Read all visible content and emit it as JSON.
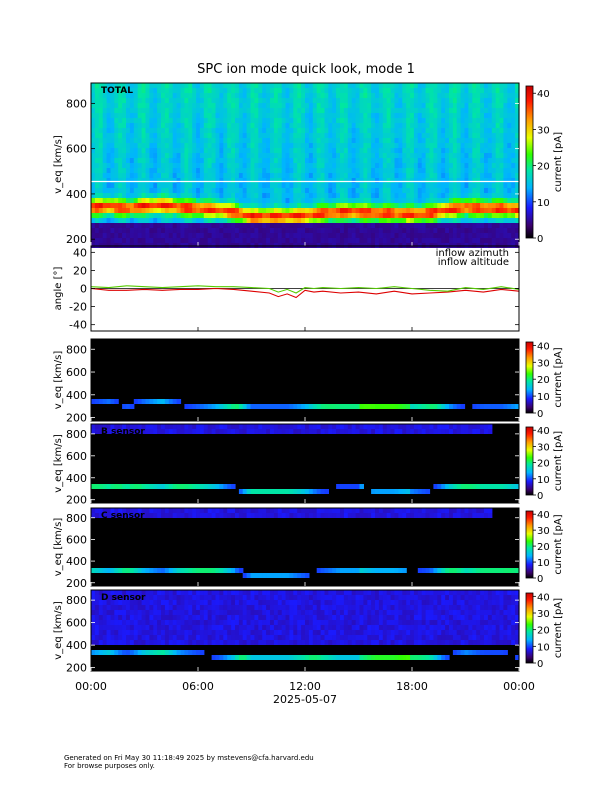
{
  "title": "SPC ion mode quick look, mode 1",
  "footer": {
    "line1": "Generated on Fri May 30 11:18:49 2025 by mstevens@cfa.harvard.edu",
    "line2": "For browse purposes only."
  },
  "colors": {
    "background": "#ffffff",
    "azimuth_line": "#dd0000",
    "altitude_line": "#55cc00",
    "bad_band": "#ffffff"
  },
  "chart_data": [
    {
      "type": "heatmap",
      "panel": "total",
      "label": "TOTAL",
      "ylabel": "v_eq [km/s]",
      "ylim": [
        170,
        890
      ],
      "yticks": [
        200,
        400,
        600,
        800
      ],
      "colorbar": {
        "label": "current [pA]",
        "range": [
          0,
          42
        ],
        "ticks": [
          0,
          10,
          20,
          30,
          40
        ]
      },
      "background_level": "high",
      "peak_velocity_kms": [
        {
          "hour": 0,
          "v": 340
        },
        {
          "hour": 1,
          "v": 345
        },
        {
          "hour": 2,
          "v": 335
        },
        {
          "hour": 3,
          "v": 345
        },
        {
          "hour": 4,
          "v": 350
        },
        {
          "hour": 5,
          "v": 340
        },
        {
          "hour": 6,
          "v": 335
        },
        {
          "hour": 7,
          "v": 330
        },
        {
          "hour": 8,
          "v": 320
        },
        {
          "hour": 9,
          "v": 300
        },
        {
          "hour": 10,
          "v": 300
        },
        {
          "hour": 11,
          "v": 300
        },
        {
          "hour": 12,
          "v": 305
        },
        {
          "hour": 13,
          "v": 315
        },
        {
          "hour": 14,
          "v": 320
        },
        {
          "hour": 15,
          "v": 320
        },
        {
          "hour": 16,
          "v": 315
        },
        {
          "hour": 17,
          "v": 315
        },
        {
          "hour": 18,
          "v": 310
        },
        {
          "hour": 19,
          "v": 315
        },
        {
          "hour": 20,
          "v": 330
        },
        {
          "hour": 21,
          "v": 340
        },
        {
          "hour": 22,
          "v": 335
        },
        {
          "hour": 23,
          "v": 335
        },
        {
          "hour": 24,
          "v": 330
        }
      ],
      "bad_band_kms": 455
    },
    {
      "type": "line",
      "panel": "angles",
      "ylabel": "angle [°]",
      "ylim": [
        -47,
        47
      ],
      "yticks": [
        -40,
        -20,
        0,
        20,
        40
      ],
      "series": [
        {
          "name": "inflow azimuth",
          "color": "#dd0000",
          "x": [
            0,
            1,
            2,
            3,
            4,
            5,
            6,
            7,
            8,
            9,
            10,
            10.5,
            11,
            11.5,
            12,
            12.5,
            13,
            14,
            15,
            16,
            17,
            18,
            19,
            20,
            21,
            22,
            23,
            24
          ],
          "values": [
            0,
            -2,
            -2,
            -1,
            -2,
            -1,
            -1,
            0,
            -1,
            -3,
            -5,
            -9,
            -6,
            -10,
            -2,
            -4,
            -3,
            -5,
            -4,
            -6,
            -3,
            -6,
            -5,
            -4,
            -2,
            -4,
            -1,
            -3
          ]
        },
        {
          "name": "inflow altitude",
          "color": "#55cc00",
          "x": [
            0,
            1,
            2,
            3,
            4,
            5,
            6,
            7,
            8,
            9,
            10,
            10.5,
            11,
            11.5,
            12,
            12.5,
            13,
            14,
            15,
            16,
            17,
            18,
            19,
            20,
            21,
            22,
            23,
            24
          ],
          "values": [
            2,
            1,
            3,
            2,
            1,
            2,
            3,
            2,
            2,
            1,
            0,
            -4,
            -1,
            -5,
            1,
            0,
            1,
            0,
            1,
            0,
            2,
            0,
            -2,
            -3,
            1,
            -1,
            2,
            -1
          ]
        }
      ]
    },
    {
      "type": "heatmap",
      "panel": "sensor-b",
      "label": "",
      "ylabel": "v_eq [km/s]",
      "ylim": [
        170,
        890
      ],
      "yticks": [
        200,
        400,
        600,
        800
      ],
      "colorbar": {
        "label": "current [pA]",
        "range": [
          0,
          42
        ],
        "ticks": [
          0,
          10,
          20,
          30,
          40
        ]
      },
      "background_level": "none"
    },
    {
      "type": "heatmap",
      "panel": "sensor-c-upper",
      "label": "B sensor",
      "ylabel": "v_eq [km/s]",
      "ylim": [
        170,
        890
      ],
      "yticks": [
        200,
        400,
        600,
        800
      ],
      "colorbar": {
        "label": "current [pA]",
        "range": [
          0,
          42
        ],
        "ticks": [
          0,
          10,
          20,
          30,
          40
        ]
      },
      "background_level": "low"
    },
    {
      "type": "heatmap",
      "panel": "sensor-c",
      "label": "C sensor",
      "ylabel": "v_eq [km/s]",
      "ylim": [
        170,
        890
      ],
      "yticks": [
        200,
        400,
        600,
        800
      ],
      "colorbar": {
        "label": "current [pA]",
        "range": [
          0,
          42
        ],
        "ticks": [
          0,
          10,
          20,
          30,
          40
        ]
      },
      "background_level": "low"
    },
    {
      "type": "heatmap",
      "panel": "sensor-d",
      "label": "D sensor",
      "ylabel": "v_eq [km/s]",
      "ylim": [
        170,
        890
      ],
      "yticks": [
        200,
        400,
        600,
        800
      ],
      "colorbar": {
        "label": "current [pA]",
        "range": [
          0,
          42
        ],
        "ticks": [
          0,
          10,
          20,
          30,
          40
        ]
      },
      "background_level": "medium"
    }
  ],
  "time_axis": {
    "tick_labels": [
      "00:00",
      "06:00",
      "12:00",
      "18:00",
      "00:00"
    ],
    "date_label": "2025-05-07",
    "range_hours": [
      0,
      24
    ]
  }
}
